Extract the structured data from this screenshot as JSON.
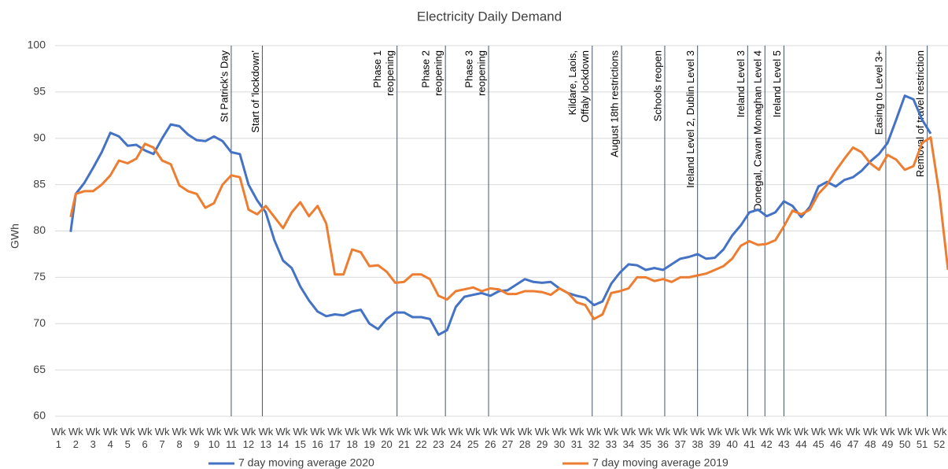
{
  "chart_data": {
    "type": "line",
    "title": "Electricity Daily Demand",
    "y_label": "GWh",
    "xlim": [
      0.8,
      52.5
    ],
    "ylim": [
      60,
      100
    ],
    "yticks": [
      60,
      65,
      70,
      75,
      80,
      85,
      90,
      95,
      100
    ],
    "grid": true,
    "legend": "bottom",
    "xticks": [
      {
        "value": 1,
        "label": "Wk 1"
      },
      {
        "value": 2,
        "label": "Wk 2"
      },
      {
        "value": 3,
        "label": "Wk 3"
      },
      {
        "value": 4,
        "label": "Wk 4"
      },
      {
        "value": 5,
        "label": "Wk 5"
      },
      {
        "value": 6,
        "label": "Wk 6"
      },
      {
        "value": 7,
        "label": "Wk 7"
      },
      {
        "value": 8,
        "label": "Wk 8"
      },
      {
        "value": 9,
        "label": "Wk 9"
      },
      {
        "value": 10,
        "label": "Wk 10"
      },
      {
        "value": 11,
        "label": "Wk 11"
      },
      {
        "value": 12,
        "label": "Wk 12"
      },
      {
        "value": 13,
        "label": "Wk 13"
      },
      {
        "value": 14,
        "label": "Wk 14"
      },
      {
        "value": 15,
        "label": "Wk 15"
      },
      {
        "value": 16,
        "label": "Wk 16"
      },
      {
        "value": 17,
        "label": "Wk 17"
      },
      {
        "value": 18,
        "label": "Wk 18"
      },
      {
        "value": 19,
        "label": "Wk 19"
      },
      {
        "value": 20,
        "label": "Wk 20"
      },
      {
        "value": 21,
        "label": "Wk 21"
      },
      {
        "value": 22,
        "label": "Wk 22"
      },
      {
        "value": 23,
        "label": "Wk 23"
      },
      {
        "value": 24,
        "label": "Wk 24"
      },
      {
        "value": 25,
        "label": "Wk 25"
      },
      {
        "value": 26,
        "label": "Wk 26"
      },
      {
        "value": 27,
        "label": "Wk 27"
      },
      {
        "value": 28,
        "label": "Wk 28"
      },
      {
        "value": 29,
        "label": "Wk 29"
      },
      {
        "value": 30,
        "label": "Wk 30"
      },
      {
        "value": 31,
        "label": "Wk 31"
      },
      {
        "value": 32,
        "label": "Wk 32"
      },
      {
        "value": 33,
        "label": "Wk 33"
      },
      {
        "value": 34,
        "label": "Wk 34"
      },
      {
        "value": 35,
        "label": "Wk 35"
      },
      {
        "value": 36,
        "label": "Wk 36"
      },
      {
        "value": 37,
        "label": "Wk 37"
      },
      {
        "value": 38,
        "label": "Wk 38"
      },
      {
        "value": 39,
        "label": "Wk 39"
      },
      {
        "value": 40,
        "label": "Wk 40"
      },
      {
        "value": 41,
        "label": "Wk 41"
      },
      {
        "value": 42,
        "label": "Wk 42"
      },
      {
        "value": 43,
        "label": "Wk 43"
      },
      {
        "value": 44,
        "label": "Wk 44"
      },
      {
        "value": 45,
        "label": "Wk 45"
      },
      {
        "value": 46,
        "label": "Wk 46"
      },
      {
        "value": 47,
        "label": "Wk 47"
      },
      {
        "value": 48,
        "label": "Wk 48"
      },
      {
        "value": 49,
        "label": "Wk 49"
      },
      {
        "value": 50,
        "label": "Wk 50"
      },
      {
        "value": 51,
        "label": "Wk 51"
      },
      {
        "value": 52,
        "label": "Wk 52"
      }
    ],
    "x": [
      1.7,
      2,
      2.5,
      3,
      3.5,
      4,
      4.5,
      5,
      5.5,
      6,
      6.5,
      7,
      7.5,
      8,
      8.5,
      9,
      9.5,
      10,
      10.5,
      11,
      11.5,
      12,
      12.5,
      13,
      13.5,
      14,
      14.5,
      15,
      15.5,
      16,
      16.5,
      17,
      17.5,
      18,
      18.5,
      19,
      19.5,
      20,
      20.5,
      21,
      21.5,
      22,
      22.5,
      23,
      23.5,
      24,
      24.5,
      25,
      25.5,
      26,
      26.5,
      27,
      27.5,
      28,
      28.5,
      29,
      29.5,
      30,
      30.5,
      31,
      31.5,
      32,
      32.5,
      33,
      33.5,
      34,
      34.5,
      35,
      35.5,
      36,
      36.5,
      37,
      37.5,
      38,
      38.5,
      39,
      39.5,
      40,
      40.5,
      41,
      41.5,
      42,
      42.5,
      43,
      43.5,
      44,
      44.5,
      45,
      45.5,
      46,
      46.5,
      47,
      47.5,
      48,
      48.5,
      49,
      49.5,
      50,
      50.5,
      51,
      51.5,
      52,
      52.5
    ],
    "series": [
      {
        "name": "7 day moving average 2020",
        "color": "#4472c4",
        "values": [
          79.9,
          84.0,
          85.2,
          86.8,
          88.5,
          90.6,
          90.2,
          89.2,
          89.3,
          88.7,
          88.3,
          90.0,
          91.5,
          91.3,
          90.4,
          89.8,
          89.7,
          90.2,
          89.7,
          88.5,
          88.3,
          85.0,
          83.3,
          82.0,
          79.0,
          76.8,
          76.0,
          74.0,
          72.5,
          71.3,
          70.8,
          71.0,
          70.9,
          71.3,
          71.5,
          70.0,
          69.4,
          70.5,
          71.2,
          71.2,
          70.7,
          70.7,
          70.5,
          68.8,
          69.3,
          71.8,
          72.9,
          73.1,
          73.3,
          73.0,
          73.5,
          73.6,
          74.2,
          74.8,
          74.5,
          74.4,
          74.5,
          73.8,
          73.3,
          73.0,
          72.8,
          72.0,
          72.4,
          74.3,
          75.5,
          76.4,
          76.3,
          75.8,
          76.0,
          75.8,
          76.4,
          77.0,
          77.2,
          77.5,
          77.0,
          77.1,
          78.0,
          79.5,
          80.6,
          82.0,
          82.3,
          81.6,
          82.0,
          83.2,
          82.7,
          81.5,
          82.6,
          84.8,
          85.3,
          84.8,
          85.5,
          85.8,
          86.5,
          87.5,
          88.3,
          89.5,
          92.0,
          94.6,
          94.2,
          92.0,
          90.5,
          null,
          null
        ]
      },
      {
        "name": "7 day moving average 2019",
        "color": "#ed7d31",
        "values": [
          81.5,
          84.0,
          84.3,
          84.3,
          85.0,
          86.0,
          87.6,
          87.3,
          87.8,
          89.4,
          89.0,
          87.6,
          87.2,
          84.9,
          84.3,
          84.0,
          82.5,
          83.0,
          85.0,
          86.0,
          85.8,
          82.3,
          81.8,
          82.7,
          81.5,
          80.3,
          82.0,
          83.1,
          81.6,
          82.7,
          80.8,
          75.3,
          75.3,
          78.0,
          77.7,
          76.2,
          76.3,
          75.6,
          74.4,
          74.5,
          75.3,
          75.3,
          74.8,
          73.0,
          72.6,
          73.5,
          73.7,
          73.9,
          73.5,
          73.8,
          73.7,
          73.2,
          73.2,
          73.5,
          73.5,
          73.4,
          73.1,
          73.8,
          73.3,
          72.3,
          72.0,
          70.5,
          71.0,
          73.3,
          73.5,
          73.8,
          75.0,
          75.0,
          74.6,
          74.8,
          74.5,
          75.0,
          75.0,
          75.2,
          75.4,
          75.8,
          76.2,
          77.0,
          78.4,
          78.9,
          78.5,
          78.6,
          79.0,
          80.5,
          82.2,
          81.8,
          82.3,
          84.0,
          85.0,
          86.5,
          87.8,
          89.0,
          88.5,
          87.3,
          86.6,
          88.2,
          87.7,
          86.6,
          87.0,
          89.5,
          90.1,
          84.0,
          75.8
        ]
      }
    ],
    "annotations": [
      {
        "x": 11.0,
        "lines": [
          "St Patrick's Day"
        ]
      },
      {
        "x": 12.8,
        "lines": [
          "Start of 'lockdown'"
        ]
      },
      {
        "x": 20.6,
        "lines": [
          "Phase 1",
          "reopening"
        ]
      },
      {
        "x": 23.4,
        "lines": [
          "Phase 2",
          "reopening"
        ]
      },
      {
        "x": 25.9,
        "lines": [
          "Phase 3",
          "reopening"
        ]
      },
      {
        "x": 31.9,
        "lines": [
          "Kildare, Laois,",
          "Offaly lockdown"
        ]
      },
      {
        "x": 33.6,
        "lines": [
          "August 18th restrictions"
        ]
      },
      {
        "x": 36.1,
        "lines": [
          "Schools reopen"
        ]
      },
      {
        "x": 38.0,
        "lines": [
          "Ireland Level 2, Dublin Level 3"
        ]
      },
      {
        "x": 40.9,
        "lines": [
          "Ireland Level 3"
        ]
      },
      {
        "x": 41.9,
        "lines": [
          "Donegal, Cavan Monaghan Level 4"
        ]
      },
      {
        "x": 43.0,
        "lines": [
          "Ireland Level 5"
        ]
      },
      {
        "x": 48.9,
        "lines": [
          "Easing to Level 3+"
        ]
      },
      {
        "x": 51.3,
        "lines": [
          "Removal of travel restriction"
        ]
      }
    ]
  }
}
